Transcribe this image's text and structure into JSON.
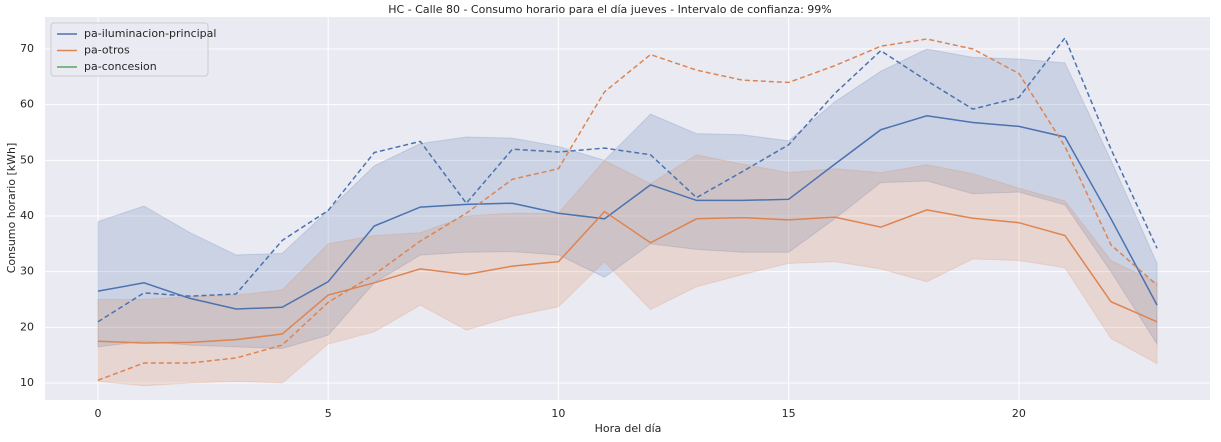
{
  "chart_data": {
    "type": "line",
    "title": "HC - Calle 80 - Consumo horario para el día jueves - Intervalo de confianza: 99%",
    "xlabel": "Hora del día",
    "ylabel": "Consumo horario [kWh]",
    "x": [
      0,
      1,
      2,
      3,
      4,
      5,
      6,
      7,
      8,
      9,
      10,
      11,
      12,
      13,
      14,
      15,
      16,
      17,
      18,
      19,
      20,
      21,
      22,
      23
    ],
    "xlim": [
      -1.15,
      24.15
    ],
    "xticks": [
      0,
      5,
      10,
      15,
      20
    ],
    "ylim": [
      6.95,
      75.75
    ],
    "yticks": [
      10,
      20,
      30,
      40,
      50,
      60,
      70
    ],
    "grid": true,
    "legend": "upper left",
    "series": [
      {
        "name": "pa-iluminacion-principal",
        "color": "#4c72b0",
        "values": [
          26.5,
          28,
          25.2,
          23.3,
          23.6,
          28.2,
          38.2,
          41.6,
          42.1,
          42.3,
          40.5,
          39.5,
          45.6,
          42.8,
          42.8,
          43,
          49.3,
          55.5,
          58,
          56.8,
          56.1,
          54.2,
          39.5,
          24
        ],
        "upper": [
          39,
          41.8,
          37,
          33,
          33.3,
          41,
          49,
          53,
          54.2,
          54,
          52.5,
          50,
          58.3,
          54.8,
          54.6,
          53.5,
          60.5,
          66,
          70,
          68.5,
          68.2,
          67.5,
          50,
          31.5
        ],
        "lower": [
          16.5,
          17.5,
          16.8,
          16.5,
          16.2,
          18.6,
          28,
          33,
          33.5,
          33.6,
          33,
          29,
          35,
          34,
          33.5,
          33.5,
          39.5,
          46,
          46.3,
          44,
          44.3,
          42,
          30,
          17
        ],
        "dashed": [
          21,
          26.2,
          25.6,
          26,
          35.6,
          41,
          51.4,
          53.4,
          42.3,
          52,
          51.5,
          52.2,
          51,
          43.3,
          48,
          52.8,
          62,
          69.7,
          64.3,
          59.2,
          61.3,
          72,
          52,
          34.2
        ]
      },
      {
        "name": "pa-otros",
        "color": "#dd8452",
        "values": [
          17.5,
          17.2,
          17.3,
          17.8,
          18.8,
          25.8,
          28,
          30.5,
          29.5,
          31,
          31.8,
          40.8,
          35.2,
          39.5,
          39.7,
          39.3,
          39.8,
          38,
          41.1,
          39.6,
          38.8,
          36.5,
          24.6,
          21
        ],
        "upper": [
          25,
          25,
          25.5,
          25.8,
          26.7,
          35,
          36.5,
          37,
          40,
          40.5,
          40.5,
          50,
          45.8,
          51,
          49.3,
          47.8,
          48.5,
          47.8,
          49.2,
          47.6,
          45,
          42.7,
          32,
          28
        ],
        "lower": [
          10.3,
          9.5,
          10,
          10.3,
          10,
          17,
          19.2,
          24,
          19.5,
          22,
          23.7,
          31.8,
          23.2,
          27.3,
          29.5,
          31.5,
          31.8,
          30.5,
          28.2,
          32.3,
          32,
          30.7,
          18,
          13.5
        ],
        "dashed": [
          10.5,
          13.6,
          13.6,
          14.5,
          16.8,
          24.5,
          29.5,
          35.5,
          40.5,
          46.6,
          48.5,
          62.3,
          69,
          66.2,
          64.4,
          64,
          67,
          70.5,
          71.8,
          70,
          65.6,
          52.5,
          34.8,
          27.6
        ]
      },
      {
        "name": "pa-concesion",
        "color": "#55a868"
      }
    ]
  }
}
